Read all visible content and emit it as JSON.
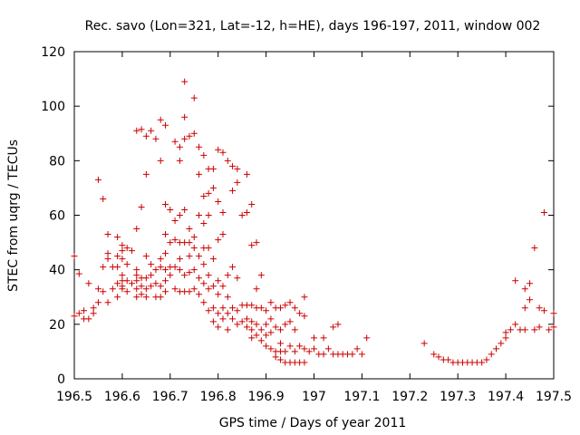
{
  "chart_data": {
    "type": "scatter",
    "title": "Rec. savo (Lon=321, Lat=-12, h=HE), days 196-197, 2011, window 002",
    "xlabel": "GPS time / Days of year 2011",
    "ylabel": "STEC from uqrg / TECUs",
    "xlim": [
      196.5,
      197.5
    ],
    "ylim": [
      0,
      120
    ],
    "x_ticks": [
      196.5,
      196.6,
      196.7,
      196.8,
      196.9,
      197.0,
      197.1,
      197.2,
      197.3,
      197.4,
      197.5
    ],
    "x_tick_labels": [
      "196.5",
      "196.6",
      "196.7",
      "196.8",
      "196.9",
      "197",
      "197.1",
      "197.2",
      "197.3",
      "197.4",
      "197.5"
    ],
    "y_ticks": [
      0,
      20,
      40,
      60,
      80,
      100,
      120
    ],
    "y_tick_labels": [
      "0",
      "20",
      "40",
      "60",
      "80",
      "100",
      "120"
    ],
    "marker": "+",
    "marker_color": "#cc0000",
    "grid": false,
    "series": [
      {
        "name": "STEC",
        "points": [
          [
            196.5,
            45
          ],
          [
            196.5,
            23
          ],
          [
            196.51,
            38.5
          ],
          [
            196.51,
            24
          ],
          [
            196.52,
            22
          ],
          [
            196.52,
            25
          ],
          [
            196.53,
            35
          ],
          [
            196.53,
            22
          ],
          [
            196.54,
            26
          ],
          [
            196.54,
            24
          ],
          [
            196.55,
            73
          ],
          [
            196.55,
            33
          ],
          [
            196.55,
            28
          ],
          [
            196.56,
            66
          ],
          [
            196.56,
            41
          ],
          [
            196.56,
            32
          ],
          [
            196.57,
            53
          ],
          [
            196.57,
            46
          ],
          [
            196.57,
            44
          ],
          [
            196.57,
            28
          ],
          [
            196.58,
            33
          ],
          [
            196.58,
            41
          ],
          [
            196.59,
            52
          ],
          [
            196.59,
            45
          ],
          [
            196.59,
            41
          ],
          [
            196.59,
            35
          ],
          [
            196.59,
            30
          ],
          [
            196.6,
            49
          ],
          [
            196.6,
            47
          ],
          [
            196.6,
            44
          ],
          [
            196.6,
            38
          ],
          [
            196.6,
            36
          ],
          [
            196.6,
            34
          ],
          [
            196.6,
            33
          ],
          [
            196.61,
            48
          ],
          [
            196.61,
            42
          ],
          [
            196.61,
            36
          ],
          [
            196.61,
            32
          ],
          [
            196.62,
            47
          ],
          [
            196.62,
            35
          ],
          [
            196.63,
            91
          ],
          [
            196.63,
            55
          ],
          [
            196.63,
            40
          ],
          [
            196.63,
            38
          ],
          [
            196.63,
            36
          ],
          [
            196.63,
            33
          ],
          [
            196.63,
            30
          ],
          [
            196.64,
            91.5
          ],
          [
            196.64,
            63
          ],
          [
            196.64,
            37
          ],
          [
            196.64,
            34
          ],
          [
            196.64,
            31
          ],
          [
            196.65,
            89
          ],
          [
            196.65,
            75
          ],
          [
            196.65,
            45
          ],
          [
            196.65,
            37
          ],
          [
            196.65,
            33
          ],
          [
            196.65,
            30
          ],
          [
            196.66,
            91
          ],
          [
            196.66,
            42
          ],
          [
            196.66,
            38
          ],
          [
            196.66,
            34
          ],
          [
            196.67,
            88
          ],
          [
            196.67,
            40
          ],
          [
            196.67,
            35
          ],
          [
            196.67,
            30
          ],
          [
            196.68,
            95
          ],
          [
            196.68,
            80
          ],
          [
            196.68,
            44
          ],
          [
            196.68,
            41
          ],
          [
            196.68,
            34
          ],
          [
            196.68,
            30
          ],
          [
            196.69,
            93
          ],
          [
            196.69,
            64
          ],
          [
            196.69,
            53
          ],
          [
            196.69,
            46
          ],
          [
            196.69,
            40
          ],
          [
            196.69,
            36
          ],
          [
            196.69,
            32
          ],
          [
            196.7,
            62
          ],
          [
            196.7,
            50
          ],
          [
            196.7,
            41
          ],
          [
            196.7,
            38
          ],
          [
            196.71,
            87
          ],
          [
            196.71,
            58
          ],
          [
            196.71,
            51
          ],
          [
            196.71,
            41
          ],
          [
            196.71,
            33
          ],
          [
            196.72,
            85
          ],
          [
            196.72,
            80
          ],
          [
            196.72,
            60
          ],
          [
            196.72,
            50
          ],
          [
            196.72,
            44
          ],
          [
            196.72,
            40
          ],
          [
            196.72,
            32
          ],
          [
            196.73,
            88
          ],
          [
            196.73,
            62
          ],
          [
            196.73,
            50
          ],
          [
            196.73,
            38
          ],
          [
            196.73,
            32
          ],
          [
            196.73,
            109
          ],
          [
            196.73,
            96
          ],
          [
            196.74,
            89
          ],
          [
            196.74,
            55
          ],
          [
            196.74,
            50
          ],
          [
            196.74,
            45
          ],
          [
            196.74,
            39
          ],
          [
            196.74,
            32
          ],
          [
            196.75,
            103
          ],
          [
            196.75,
            90
          ],
          [
            196.75,
            52
          ],
          [
            196.75,
            48
          ],
          [
            196.75,
            40
          ],
          [
            196.75,
            33
          ],
          [
            196.76,
            85
          ],
          [
            196.76,
            75
          ],
          [
            196.76,
            60
          ],
          [
            196.76,
            45
          ],
          [
            196.76,
            37
          ],
          [
            196.76,
            31
          ],
          [
            196.77,
            82
          ],
          [
            196.77,
            67
          ],
          [
            196.77,
            57
          ],
          [
            196.77,
            48
          ],
          [
            196.77,
            42
          ],
          [
            196.77,
            35
          ],
          [
            196.77,
            28
          ],
          [
            196.78,
            77
          ],
          [
            196.78,
            68
          ],
          [
            196.78,
            60
          ],
          [
            196.78,
            48
          ],
          [
            196.78,
            38
          ],
          [
            196.78,
            33
          ],
          [
            196.78,
            25
          ],
          [
            196.79,
            77
          ],
          [
            196.79,
            70
          ],
          [
            196.79,
            44
          ],
          [
            196.79,
            34
          ],
          [
            196.79,
            26
          ],
          [
            196.79,
            21
          ],
          [
            196.8,
            84
          ],
          [
            196.8,
            65
          ],
          [
            196.8,
            51
          ],
          [
            196.8,
            36
          ],
          [
            196.8,
            31
          ],
          [
            196.8,
            24
          ],
          [
            196.8,
            19
          ],
          [
            196.81,
            83
          ],
          [
            196.81,
            61
          ],
          [
            196.81,
            53
          ],
          [
            196.81,
            34
          ],
          [
            196.81,
            26
          ],
          [
            196.81,
            22
          ],
          [
            196.82,
            80
          ],
          [
            196.82,
            38
          ],
          [
            196.82,
            30
          ],
          [
            196.82,
            24
          ],
          [
            196.82,
            18
          ],
          [
            196.83,
            78
          ],
          [
            196.83,
            69
          ],
          [
            196.83,
            41
          ],
          [
            196.83,
            26
          ],
          [
            196.83,
            22
          ],
          [
            196.84,
            77
          ],
          [
            196.84,
            72
          ],
          [
            196.84,
            37
          ],
          [
            196.84,
            25
          ],
          [
            196.84,
            20
          ],
          [
            196.85,
            60
          ],
          [
            196.85,
            27
          ],
          [
            196.85,
            21
          ],
          [
            196.86,
            75
          ],
          [
            196.86,
            61
          ],
          [
            196.86,
            27
          ],
          [
            196.86,
            22
          ],
          [
            196.86,
            19
          ],
          [
            196.87,
            64
          ],
          [
            196.87,
            49
          ],
          [
            196.87,
            27
          ],
          [
            196.87,
            21
          ],
          [
            196.87,
            18
          ],
          [
            196.87,
            15
          ],
          [
            196.88,
            50
          ],
          [
            196.88,
            33
          ],
          [
            196.88,
            26
          ],
          [
            196.88,
            20
          ],
          [
            196.88,
            16
          ],
          [
            196.89,
            38
          ],
          [
            196.89,
            26
          ],
          [
            196.89,
            18
          ],
          [
            196.89,
            14
          ],
          [
            196.9,
            25
          ],
          [
            196.9,
            20
          ],
          [
            196.9,
            16
          ],
          [
            196.9,
            12
          ],
          [
            196.91,
            28
          ],
          [
            196.91,
            22
          ],
          [
            196.91,
            17
          ],
          [
            196.91,
            11
          ],
          [
            196.92,
            26
          ],
          [
            196.92,
            19
          ],
          [
            196.92,
            10
          ],
          [
            196.92,
            8
          ],
          [
            196.93,
            26
          ],
          [
            196.93,
            18
          ],
          [
            196.93,
            13
          ],
          [
            196.93,
            10
          ],
          [
            196.93,
            7
          ],
          [
            196.94,
            27
          ],
          [
            196.94,
            20
          ],
          [
            196.94,
            10
          ],
          [
            196.94,
            6
          ],
          [
            196.95,
            28
          ],
          [
            196.95,
            21
          ],
          [
            196.95,
            12
          ],
          [
            196.95,
            6
          ],
          [
            196.96,
            26
          ],
          [
            196.96,
            18
          ],
          [
            196.96,
            10
          ],
          [
            196.96,
            6
          ],
          [
            196.97,
            24
          ],
          [
            196.97,
            12
          ],
          [
            196.97,
            6
          ],
          [
            196.98,
            30
          ],
          [
            196.98,
            23
          ],
          [
            196.98,
            11
          ],
          [
            196.98,
            6
          ],
          [
            196.99,
            10
          ],
          [
            197.0,
            15
          ],
          [
            197.0,
            11
          ],
          [
            197.01,
            9
          ],
          [
            197.02,
            15
          ],
          [
            197.02,
            9
          ],
          [
            197.03,
            11
          ],
          [
            197.04,
            9
          ],
          [
            197.04,
            19
          ],
          [
            197.05,
            20
          ],
          [
            197.05,
            9
          ],
          [
            197.06,
            9
          ],
          [
            197.07,
            9
          ],
          [
            197.08,
            9
          ],
          [
            197.09,
            11
          ],
          [
            197.1,
            9
          ],
          [
            197.11,
            15
          ],
          [
            197.23,
            13
          ],
          [
            197.25,
            9
          ],
          [
            197.26,
            8
          ],
          [
            197.27,
            7
          ],
          [
            197.28,
            7
          ],
          [
            197.29,
            6
          ],
          [
            197.3,
            6
          ],
          [
            197.31,
            6
          ],
          [
            197.32,
            6
          ],
          [
            197.33,
            6
          ],
          [
            197.34,
            6
          ],
          [
            197.35,
            6
          ],
          [
            197.36,
            7
          ],
          [
            197.37,
            9
          ],
          [
            197.38,
            11
          ],
          [
            197.39,
            13
          ],
          [
            197.4,
            15
          ],
          [
            197.4,
            17
          ],
          [
            197.41,
            18
          ],
          [
            197.42,
            20
          ],
          [
            197.42,
            36
          ],
          [
            197.43,
            18
          ],
          [
            197.44,
            26
          ],
          [
            197.44,
            33
          ],
          [
            197.44,
            18
          ],
          [
            197.45,
            29
          ],
          [
            197.45,
            35
          ],
          [
            197.46,
            18
          ],
          [
            197.46,
            48
          ],
          [
            197.47,
            26
          ],
          [
            197.47,
            19
          ],
          [
            197.48,
            61
          ],
          [
            197.48,
            25
          ],
          [
            197.49,
            18
          ],
          [
            197.5,
            19
          ],
          [
            197.5,
            24
          ]
        ]
      }
    ]
  }
}
